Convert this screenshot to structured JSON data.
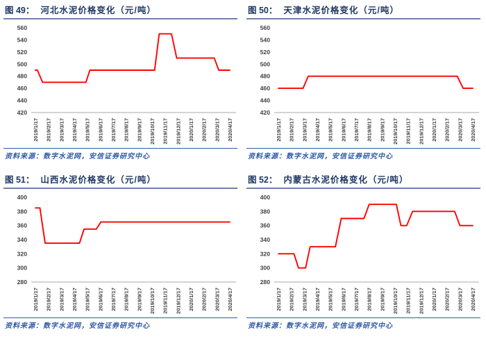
{
  "colors": {
    "line": "#ff0000",
    "title_text": "#1f3864",
    "title_separator": "#6d81ad",
    "source_text": "#2f5ba7",
    "axis_text": "#404040",
    "baseline": "#c6c6c6",
    "background": "#ffffff"
  },
  "chart_data": [
    {
      "type": "line",
      "fig_label": "图 49：",
      "title": "河北水泥价格变化（元/吨）",
      "source": "资料来源：数字水泥网，安信证券研究中心",
      "ylim": [
        420,
        560
      ],
      "y_ticks": [
        560,
        540,
        520,
        500,
        480,
        460,
        440,
        420
      ],
      "x_labels": [
        "2019/1/17",
        "2019/2/17",
        "2019/3/17",
        "2019/4/17",
        "2019/5/17",
        "2019/6/17",
        "2019/7/17",
        "2019/8/17",
        "2019/9/17",
        "2019/10/17",
        "2019/11/17",
        "2019/12/17",
        "2020/1/17",
        "2020/2/17",
        "2020/3/17",
        "2020/4/17"
      ],
      "x_unit": "months_since_2019/1/17",
      "grid": "off",
      "legend": "none",
      "series": [
        {
          "color": "#ff0000",
          "points": [
            [
              0,
              490
            ],
            [
              0.15,
              490
            ],
            [
              0.55,
              470
            ],
            [
              3.9,
              470
            ],
            [
              4.2,
              490
            ],
            [
              9.2,
              490
            ],
            [
              9.55,
              550
            ],
            [
              10.5,
              550
            ],
            [
              10.9,
              510
            ],
            [
              13.8,
              510
            ],
            [
              14.15,
              490
            ],
            [
              15,
              490
            ]
          ]
        }
      ]
    },
    {
      "type": "line",
      "fig_label": "图 50：",
      "title": "天津水泥价格变化（元/吨）",
      "source": "资料来源：数字水泥网，安信证券研究中心",
      "ylim": [
        420,
        560
      ],
      "y_ticks": [
        560,
        540,
        520,
        500,
        480,
        460,
        440,
        420
      ],
      "x_labels": [
        "2019/1/17",
        "2019/2/17",
        "2019/3/17",
        "2019/4/17",
        "2019/5/17",
        "2019/6/17",
        "2019/7/17",
        "2019/8/17",
        "2019/9/17",
        "2019/10/17",
        "2019/11/17",
        "2019/12/17",
        "2020/1/17",
        "2020/2/17",
        "2020/3/17",
        "2020/4/17"
      ],
      "x_unit": "months_since_2019/1/17",
      "grid": "off",
      "legend": "none",
      "series": [
        {
          "color": "#ff0000",
          "points": [
            [
              0,
              460
            ],
            [
              1.9,
              460
            ],
            [
              2.3,
              480
            ],
            [
              13.8,
              480
            ],
            [
              14.25,
              460
            ],
            [
              15,
              460
            ]
          ]
        }
      ]
    },
    {
      "type": "line",
      "fig_label": "图 51：",
      "title": "山西水泥价格变化（元/吨）",
      "source": "资料来源：数字水泥网，安信证券研究中心",
      "ylim": [
        280,
        400
      ],
      "y_ticks": [
        400,
        380,
        360,
        340,
        320,
        300,
        280
      ],
      "x_labels": [
        "2019/1/17",
        "2019/2/17",
        "2019/3/17",
        "2019/4/17",
        "2019/5/17",
        "2019/6/17",
        "2019/7/17",
        "2019/8/17",
        "2019/9/17",
        "2019/10/17",
        "2019/11/17",
        "2019/12/17",
        "2020/1/17",
        "2020/2/17",
        "2020/3/17",
        "2020/4/17"
      ],
      "x_unit": "months_since_2019/1/17",
      "grid": "off",
      "legend": "none",
      "series": [
        {
          "color": "#ff0000",
          "points": [
            [
              0,
              385
            ],
            [
              0.35,
              385
            ],
            [
              0.75,
              335
            ],
            [
              3.4,
              335
            ],
            [
              3.75,
              355
            ],
            [
              4.7,
              355
            ],
            [
              5.05,
              365
            ],
            [
              15,
              365
            ]
          ]
        }
      ]
    },
    {
      "type": "line",
      "fig_label": "图 52：",
      "title": "内蒙古水泥价格变化（元/吨）",
      "source": "资料来源：数字水泥网，安信证券研究中心",
      "ylim": [
        280,
        400
      ],
      "y_ticks": [
        400,
        380,
        360,
        340,
        320,
        300,
        280
      ],
      "x_labels": [
        "2019/1/17",
        "2019/2/17",
        "2019/3/17",
        "2019/4/17",
        "2019/5/17",
        "2019/6/17",
        "2019/7/17",
        "2019/8/17",
        "2019/9/17",
        "2019/10/17",
        "2019/11/17",
        "2019/12/17",
        "2020/1/17",
        "2020/2/17",
        "2020/3/17",
        "2020/4/17"
      ],
      "x_unit": "months_since_2019/1/17",
      "grid": "off",
      "legend": "none",
      "series": [
        {
          "color": "#ff0000",
          "points": [
            [
              0,
              320
            ],
            [
              1.2,
              320
            ],
            [
              1.55,
              300
            ],
            [
              2.1,
              300
            ],
            [
              2.45,
              330
            ],
            [
              4.4,
              330
            ],
            [
              4.85,
              370
            ],
            [
              6.6,
              370
            ],
            [
              7.0,
              390
            ],
            [
              9.1,
              390
            ],
            [
              9.45,
              360
            ],
            [
              9.9,
              360
            ],
            [
              10.35,
              380
            ],
            [
              13.6,
              380
            ],
            [
              14.0,
              360
            ],
            [
              15,
              360
            ]
          ]
        }
      ]
    }
  ]
}
